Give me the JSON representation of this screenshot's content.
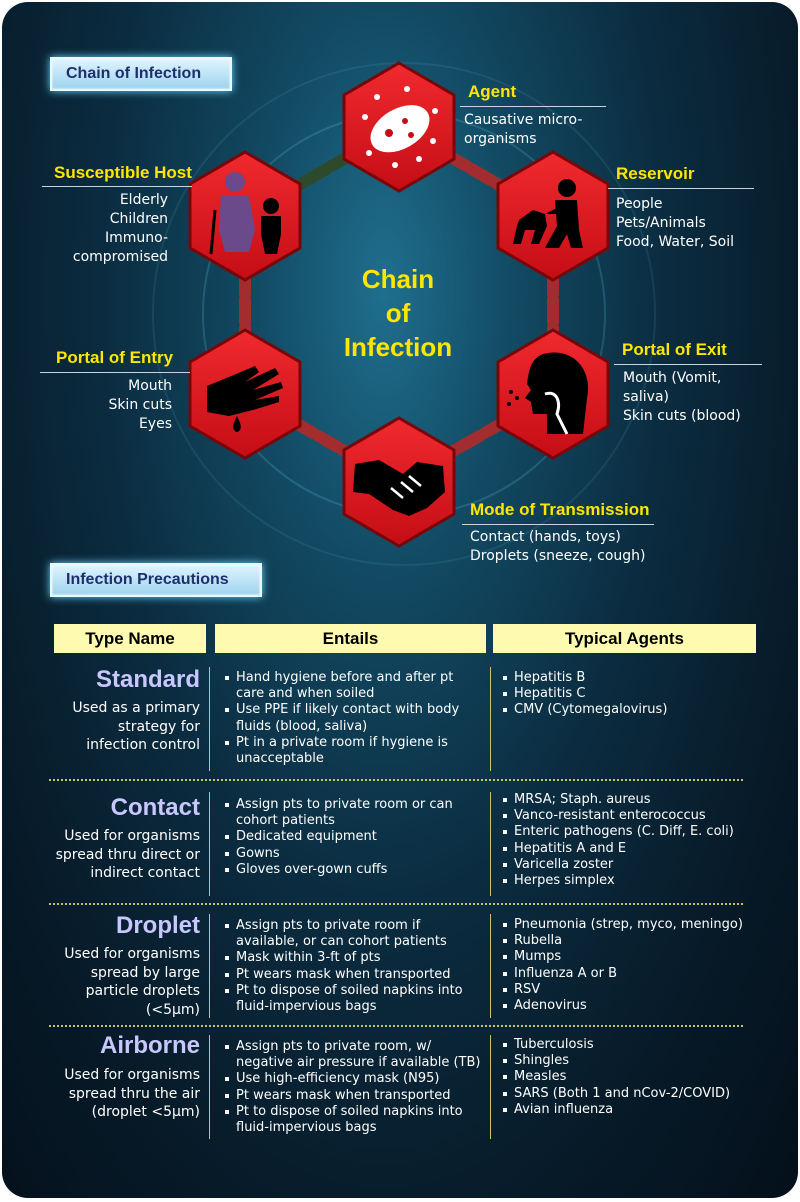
{
  "chain_section": {
    "tag": "Chain of Infection",
    "center_title_lines": [
      "Chain",
      "of",
      "Infection"
    ],
    "nodes": {
      "agent": {
        "title": "Agent",
        "desc": "Causative micro-\norganisms"
      },
      "reservoir": {
        "title": "Reservoir",
        "desc": "People\nPets/Animals\nFood, Water, Soil"
      },
      "portal_exit": {
        "title": "Portal of Exit",
        "desc": "Mouth (Vomit,\nsaliva)\nSkin cuts (blood)"
      },
      "mode": {
        "title": "Mode of Transmission",
        "desc": "Contact (hands, toys)\nDroplets (sneeze, cough)"
      },
      "portal_entry": {
        "title": "Portal of Entry",
        "desc": "Mouth\nSkin cuts\nEyes"
      },
      "host": {
        "title": "Susceptible Host",
        "desc": "Elderly\nChildren\nImmuno-\ncompromised"
      }
    },
    "icons": [
      "virus-icon",
      "person-with-dog-icon",
      "coughing-head-icon",
      "handshake-icon",
      "bleeding-hand-icon",
      "elderly-and-child-icon"
    ],
    "colors": {
      "hex_red": "#e0141c",
      "label_yellow": "#ffe600",
      "chain_red": "#a32c2e",
      "chain_green": "#2e4a2c"
    }
  },
  "precautions_section": {
    "tag": "Infection Precautions",
    "headers": [
      "Type Name",
      "Entails",
      "Typical Agents"
    ],
    "rows": [
      {
        "name": "Standard",
        "desc": [
          "Used as a primary",
          "strategy for",
          "infection control"
        ],
        "entails": [
          "Hand hygiene before and after pt care and when soiled",
          "Use PPE if likely contact with body fluids (blood, saliva)",
          "Pt in a private room if hygiene is unacceptable"
        ],
        "agents": [
          "Hepatitis B",
          "Hepatitis C",
          "CMV (Cytomegalovirus)"
        ]
      },
      {
        "name": "Contact",
        "desc": [
          "Used for organisms",
          "spread thru direct or",
          "indirect contact"
        ],
        "entails": [
          "Assign pts to private room or can cohort patients",
          "Dedicated equipment",
          "Gowns",
          "Gloves over-gown cuffs"
        ],
        "agents": [
          "MRSA; Staph. aureus",
          "Vanco-resistant enterococcus",
          "Enteric pathogens (C. Diff, E. coli)",
          "Hepatitis A and E",
          "Varicella zoster",
          "Herpes simplex"
        ]
      },
      {
        "name": "Droplet",
        "desc": [
          "Used for organisms",
          "spread by large",
          "particle droplets",
          "(<5µm)"
        ],
        "entails": [
          "Assign pts to private room if available, or can cohort patients",
          "Mask within 3-ft of pts",
          "Pt wears mask when transported",
          "Pt to dispose of soiled napkins into fluid-impervious bags"
        ],
        "agents": [
          "Pneumonia (strep, myco, meningo)",
          "Rubella",
          "Mumps",
          "Influenza A or B",
          "RSV",
          "Adenovirus"
        ]
      },
      {
        "name": "Airborne",
        "desc": [
          "Used for organisms",
          "spread thru the air",
          "(droplet <5µm)"
        ],
        "entails": [
          "Assign pts to private room, w/ negative air pressure if available (TB)",
          "Use high-efficiency mask (N95)",
          "Pt wears mask when transported",
          "Pt to dispose of soiled napkins into fluid-impervious bags"
        ],
        "agents": [
          "Tuberculosis",
          "Shingles",
          "Measles",
          "SARS (Both 1 and nCov-2/COVID)",
          "Avian influenza"
        ]
      }
    ],
    "colors": {
      "header_bg": "#fefbb0",
      "type_name": "#c9c7ff",
      "divider": "#c9c46a"
    }
  }
}
